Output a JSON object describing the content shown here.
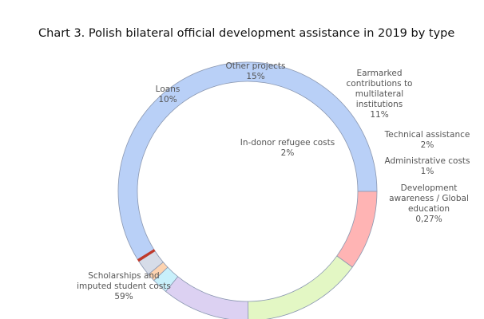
{
  "chart_data": {
    "type": "pie",
    "title": "Chart 3. Polish bilateral official development assistance in 2019 by type",
    "donut": true,
    "slices": [
      {
        "label": "Scholarships and imputed student costs",
        "value": 59,
        "display": "59%",
        "color": "#b9d0f7"
      },
      {
        "label": "Loans",
        "value": 10,
        "display": "10%",
        "color": "#ffb4b4"
      },
      {
        "label": "Other projects",
        "value": 15,
        "display": "15%",
        "color": "#e3f7c4"
      },
      {
        "label": "Earmarked contributions to multilateral institutions",
        "value": 11,
        "display": "11%",
        "color": "#dcd1f2"
      },
      {
        "label": "Technical assistance",
        "value": 2,
        "display": "2%",
        "color": "#c8f0fb"
      },
      {
        "label": "Administrative costs",
        "value": 1,
        "display": "1%",
        "color": "#fdd3b0"
      },
      {
        "label": "In-donor refugee costs",
        "value": 2,
        "display": "2%",
        "color": "#d6dce8"
      },
      {
        "label": "Development awareness / Global education",
        "value": 0.27,
        "display": "0,27%",
        "color": "#c0392b"
      }
    ]
  }
}
